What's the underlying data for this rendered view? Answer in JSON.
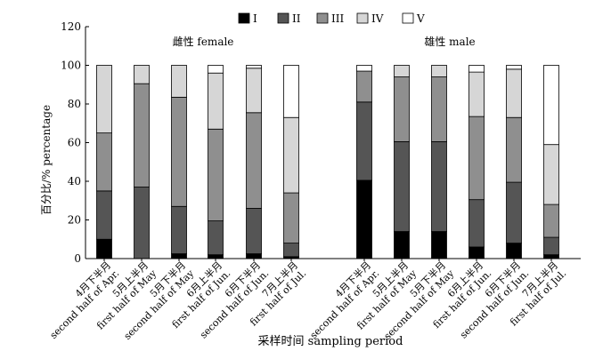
{
  "chart_data": {
    "type": "bar",
    "stacked": true,
    "ylabel": "百分比/% percentage",
    "xlabel": "采样时间 sampling period",
    "ylim": [
      0,
      120
    ],
    "yticks": [
      0,
      20,
      40,
      60,
      80,
      100,
      120
    ],
    "grid": false,
    "legend": {
      "placement": "top-right",
      "entries": [
        {
          "name": "I",
          "color": "#000000"
        },
        {
          "name": "II",
          "color": "#555555"
        },
        {
          "name": "III",
          "color": "#8f8f8f"
        },
        {
          "name": "IV",
          "color": "#d6d6d6"
        },
        {
          "name": "V",
          "color": "#ffffff"
        }
      ]
    },
    "groups": [
      {
        "label": "雌性 female",
        "categories": [
          [
            "4月下半月",
            "second half of Apr."
          ],
          [
            "5月上半月",
            "first half of May"
          ],
          [
            "5月下半月",
            "second half of May"
          ],
          [
            "6月上半月",
            "first half of Jun."
          ],
          [
            "6月下半月",
            "second half of Jun."
          ],
          [
            "7月上半月",
            "first half of Jul."
          ]
        ],
        "series": [
          {
            "name": "I",
            "values": [
              10,
              0,
              2.5,
              2,
              2.5,
              1
            ]
          },
          {
            "name": "II",
            "values": [
              25,
              37,
              24.5,
              17.5,
              23.5,
              7
            ]
          },
          {
            "name": "III",
            "values": [
              30,
              53.5,
              56.5,
              47.5,
              49.5,
              26
            ]
          },
          {
            "name": "IV",
            "values": [
              35,
              9.5,
              16.5,
              29,
              23,
              39
            ]
          },
          {
            "name": "V",
            "values": [
              0,
              0,
              0,
              4,
              1.5,
              27
            ]
          }
        ]
      },
      {
        "label": "雄性 male",
        "categories": [
          [
            "4月下半月",
            "second half of Apr."
          ],
          [
            "5月上半月",
            "first half of May"
          ],
          [
            "5月下半月",
            "second half of May"
          ],
          [
            "6月上半月",
            "first half of Jun."
          ],
          [
            "6月下半月",
            "second half of Jun."
          ],
          [
            "7月上半月",
            "first half of Jul."
          ]
        ],
        "series": [
          {
            "name": "I",
            "values": [
              40.5,
              14,
              14,
              6,
              8,
              2
            ]
          },
          {
            "name": "II",
            "values": [
              40.5,
              46.5,
              46.5,
              24.5,
              31.5,
              9
            ]
          },
          {
            "name": "III",
            "values": [
              16,
              33.5,
              33.5,
              43,
              33.5,
              17
            ]
          },
          {
            "name": "IV",
            "values": [
              0,
              6,
              6,
              23,
              25,
              31
            ]
          },
          {
            "name": "V",
            "values": [
              3,
              0,
              0,
              3.5,
              2,
              41
            ]
          }
        ]
      }
    ]
  }
}
